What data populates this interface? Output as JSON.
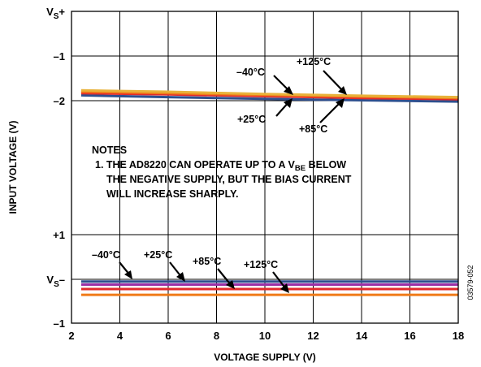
{
  "chart_data": {
    "type": "line",
    "xlabel": "VOLTAGE SUPPLY (V)",
    "ylabel": "INPUT VOLTAGE (V)",
    "xlim": [
      2,
      18
    ],
    "x_ticks": [
      "2",
      "4",
      "6",
      "8",
      "10",
      "12",
      "14",
      "16",
      "18"
    ],
    "y_ticks": [
      {
        "main": "V",
        "sub": "S",
        "suffix": "+"
      },
      {
        "main": "–1",
        "sub": "",
        "suffix": ""
      },
      {
        "main": "–2",
        "sub": "",
        "suffix": ""
      },
      {
        "main": "+1",
        "sub": "",
        "suffix": ""
      },
      {
        "main": "V",
        "sub": "S",
        "suffix": "–"
      },
      {
        "main": "–1",
        "sub": "",
        "suffix": ""
      }
    ],
    "grid": true,
    "upper_group": {
      "x": [
        2.4,
        6,
        10,
        14,
        18
      ],
      "series": [
        {
          "label": "–40°C",
          "color": "#2e4f8e",
          "y": [
            -1.88,
            -1.92,
            -1.96,
            -1.99,
            -2.02
          ]
        },
        {
          "label": "+25°C",
          "color": "#e32b2b",
          "y": [
            -1.83,
            -1.86,
            -1.9,
            -1.94,
            -1.97
          ]
        },
        {
          "label": "+85°C",
          "color": "#f07a18",
          "y": [
            -1.8,
            -1.83,
            -1.87,
            -1.91,
            -1.94
          ]
        },
        {
          "label": "+125°C",
          "color": "#e8b23a",
          "y": [
            -1.77,
            -1.8,
            -1.85,
            -1.89,
            -1.92
          ]
        }
      ]
    },
    "lower_group": {
      "x": [
        2.4,
        18
      ],
      "series": [
        {
          "label": "–40°C",
          "color": "#2e4f8e",
          "y": [
            -0.05,
            -0.05
          ]
        },
        {
          "label": "+25°C",
          "color": "#9b2fa5",
          "y": [
            -0.12,
            -0.12
          ]
        },
        {
          "label": "+85°C",
          "color": "#e32b2b",
          "y": [
            -0.22,
            -0.22
          ]
        },
        {
          "label": "+125°C",
          "color": "#f07a18",
          "y": [
            -0.35,
            -0.35
          ]
        }
      ]
    },
    "notes": {
      "title": "NOTES",
      "line1_before": "1. THE AD8220 CAN OPERATE UP TO A V",
      "line1_sub": "BE",
      "line1_after": " BELOW",
      "line2": "THE NEGATIVE SUPPLY, BUT THE BIAS CURRENT",
      "line3": "WILL INCREASE SHARPLY."
    },
    "figure_id": "03579-052"
  }
}
